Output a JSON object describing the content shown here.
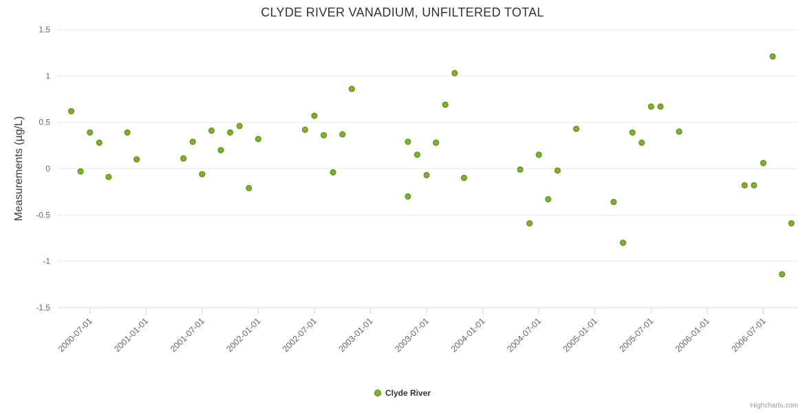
{
  "chart_data": {
    "type": "scatter",
    "title": "CLYDE RIVER VANADIUM, UNFILTERED TOTAL",
    "xlabel": "",
    "ylabel": "Measurements (µg/L)",
    "ylim": [
      -1.5,
      1.5
    ],
    "yticks": [
      1.5,
      1,
      0.5,
      0,
      -0.5,
      -1,
      -1.5
    ],
    "xlim_years": [
      2000.22,
      2006.81
    ],
    "xticks": [
      "2000-07-01",
      "2001-01-01",
      "2001-07-01",
      "2002-01-01",
      "2002-07-01",
      "2003-01-01",
      "2003-07-01",
      "2004-01-01",
      "2004-07-01",
      "2005-01-01",
      "2005-07-01",
      "2006-01-01",
      "2006-07-01"
    ],
    "grid": true,
    "legend_position": "bottom-center",
    "series": [
      {
        "name": "Clyde River",
        "color": "#7db32b",
        "border_color": "#577d12",
        "points": [
          [
            "2000-05",
            0.62
          ],
          [
            "2000-06",
            -0.03
          ],
          [
            "2000-07",
            0.39
          ],
          [
            "2000-08",
            0.28
          ],
          [
            "2000-09",
            -0.09
          ],
          [
            "2000-11",
            0.39
          ],
          [
            "2000-12",
            0.1
          ],
          [
            "2001-05",
            0.11
          ],
          [
            "2001-06",
            0.29
          ],
          [
            "2001-07",
            -0.06
          ],
          [
            "2001-08",
            0.41
          ],
          [
            "2001-09",
            0.2
          ],
          [
            "2001-10",
            0.39
          ],
          [
            "2001-11",
            0.46
          ],
          [
            "2001-12",
            -0.21
          ],
          [
            "2002-01",
            0.32
          ],
          [
            "2002-06",
            0.42
          ],
          [
            "2002-07",
            0.57
          ],
          [
            "2002-08",
            0.36
          ],
          [
            "2002-09",
            -0.04
          ],
          [
            "2002-10",
            0.37
          ],
          [
            "2002-11",
            0.86
          ],
          [
            "2003-05",
            0.29
          ],
          [
            "2003-05",
            -0.3
          ],
          [
            "2003-06",
            0.15
          ],
          [
            "2003-07",
            -0.07
          ],
          [
            "2003-08",
            0.28
          ],
          [
            "2003-09",
            0.69
          ],
          [
            "2003-10",
            1.03
          ],
          [
            "2003-11",
            -0.1
          ],
          [
            "2004-05",
            -0.01
          ],
          [
            "2004-06",
            -0.59
          ],
          [
            "2004-07",
            0.15
          ],
          [
            "2004-08",
            -0.33
          ],
          [
            "2004-09",
            -0.02
          ],
          [
            "2004-11",
            0.43
          ],
          [
            "2005-03",
            -0.36
          ],
          [
            "2005-04",
            -0.8
          ],
          [
            "2005-05",
            0.39
          ],
          [
            "2005-06",
            0.28
          ],
          [
            "2005-07",
            0.67
          ],
          [
            "2005-08",
            0.67
          ],
          [
            "2005-10",
            0.4
          ],
          [
            "2006-05",
            -0.18
          ],
          [
            "2006-06",
            -0.18
          ],
          [
            "2006-07",
            0.06
          ],
          [
            "2006-08",
            1.21
          ],
          [
            "2006-09",
            -1.14
          ],
          [
            "2006-10",
            -0.59
          ]
        ]
      }
    ]
  },
  "credit": "Highcharts.com",
  "colors": {
    "grid": "#e6e6e6",
    "axis": "#ccd6eb",
    "tick_label": "#666666",
    "title": "#333333"
  }
}
